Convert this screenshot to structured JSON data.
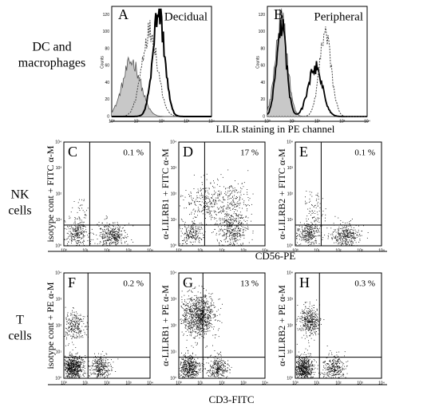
{
  "figure": {
    "row_labels": [
      [
        "DC and",
        "macrophages"
      ],
      [
        "NK",
        "cells"
      ],
      [
        "T",
        "cells"
      ]
    ],
    "panels": [
      {
        "letter": "A",
        "title": "Decidual"
      },
      {
        "letter": "B",
        "title": "Peripheral"
      },
      {
        "letter": "C",
        "percent": "0.1 %",
        "ylabel": "isotype cont + FITC α-M"
      },
      {
        "letter": "D",
        "percent": "17 %",
        "ylabel": "α-LILRB1 + FITC α-M"
      },
      {
        "letter": "E",
        "percent": "0.1 %",
        "ylabel": "α-LILRB2 + FITC α-M"
      },
      {
        "letter": "F",
        "percent": "0.2 %",
        "ylabel": "isotype cont + PE α-M"
      },
      {
        "letter": "G",
        "percent": "13 %",
        "ylabel": "α-LILRB1 + PE α-M"
      },
      {
        "letter": "H",
        "percent": "0.3 %",
        "ylabel": "α-LILRB2 + PE α-M"
      }
    ],
    "axis_labels": {
      "histogram_x": "LILR staining in PE channel",
      "nk_x": "CD56-PE",
      "t_x": "CD3-FITC",
      "counts": "Counts"
    },
    "log_ticks": [
      "10⁰",
      "10¹",
      "10²",
      "10³",
      "10⁴"
    ],
    "count_ticks": [
      "0",
      "20",
      "40",
      "60",
      "80",
      "100",
      "120"
    ]
  }
}
